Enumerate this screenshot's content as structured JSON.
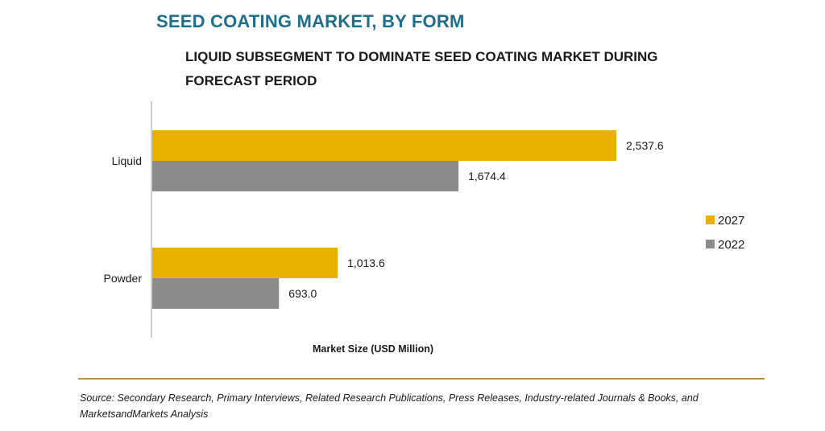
{
  "header": {
    "title": "SEED COATING MARKET, BY FORM",
    "subtitle": "LIQUID SUBSEGMENT TO DOMINATE SEED COATING MARKET DURING FORECAST PERIOD"
  },
  "chart_data": {
    "type": "bar",
    "orientation": "horizontal",
    "categories": [
      "Liquid",
      "Powder"
    ],
    "series": [
      {
        "name": "2027",
        "color": "#e8b000",
        "values": [
          2537.6,
          1013.6
        ],
        "labels": [
          "2,537.6",
          "1,013.6"
        ]
      },
      {
        "name": "2022",
        "color": "#8c8c8c",
        "values": [
          1674.4,
          693.0
        ],
        "labels": [
          "1,674.4",
          "693.0"
        ]
      }
    ],
    "xlabel": "Market Size (USD Million)",
    "xlim": [
      0,
      2800
    ],
    "grid": false,
    "legend": "right"
  },
  "footer": {
    "source": "Source: Secondary Research, Primary Interviews, Related Research Publications, Press Releases, Industry-related Journals & Books, and MarketsandMarkets Analysis"
  }
}
